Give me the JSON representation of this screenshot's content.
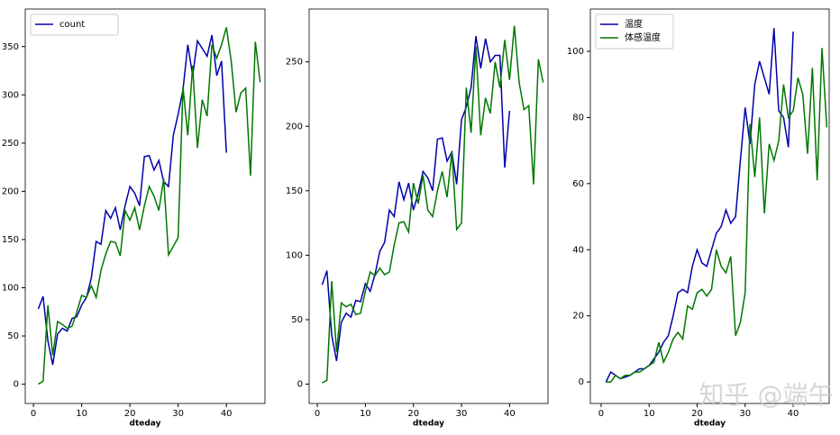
{
  "chart_data": [
    {
      "type": "line",
      "xlabel": "dteday",
      "legend": "upper left",
      "x": [
        1,
        2,
        3,
        4,
        5,
        6,
        7,
        8,
        9,
        10,
        11,
        12,
        13,
        14,
        15,
        16,
        17,
        18,
        19,
        20,
        21,
        22,
        23,
        24,
        25,
        26,
        27,
        28,
        29,
        30,
        31,
        32,
        33,
        34,
        35,
        36,
        37,
        38,
        39,
        40,
        41,
        42,
        43,
        44,
        45,
        46,
        47
      ],
      "xlim": [
        -1.7,
        48
      ],
      "xticks": [
        0,
        10,
        20,
        30,
        40
      ],
      "ylim": [
        -20,
        389
      ],
      "yticks": [
        0,
        50,
        100,
        150,
        200,
        250,
        300,
        350
      ],
      "series": [
        {
          "name": "count",
          "color": "#0000aa",
          "values": [
            78,
            91,
            45,
            20,
            52,
            58,
            55,
            68,
            70,
            82,
            90,
            110,
            148,
            145,
            180,
            172,
            183,
            160,
            185,
            205,
            198,
            185,
            236,
            237,
            222,
            232,
            210,
            205,
            258,
            280,
            305,
            352,
            320,
            356,
            348,
            340,
            362,
            320,
            335,
            240,
            null,
            null,
            null,
            null,
            null,
            null,
            null
          ]
        },
        {
          "color": "#007700",
          "values": [
            0,
            3,
            82,
            30,
            65,
            62,
            58,
            60,
            75,
            92,
            90,
            102,
            90,
            118,
            135,
            148,
            147,
            133,
            180,
            170,
            183,
            160,
            185,
            205,
            195,
            180,
            213,
            134,
            143,
            152,
            308,
            258,
            330,
            245,
            295,
            278,
            352,
            338,
            352,
            370,
            335,
            282,
            302,
            307,
            216,
            355,
            313
          ]
        }
      ]
    },
    {
      "type": "line",
      "xlabel": "dteday",
      "x": [
        1,
        2,
        3,
        4,
        5,
        6,
        7,
        8,
        9,
        10,
        11,
        12,
        13,
        14,
        15,
        16,
        17,
        18,
        19,
        20,
        21,
        22,
        23,
        24,
        25,
        26,
        27,
        28,
        29,
        30,
        31,
        32,
        33,
        34,
        35,
        36,
        37,
        38,
        39,
        40,
        41,
        42,
        43,
        44,
        45,
        46,
        47
      ],
      "xlim": [
        -1.7,
        48
      ],
      "xticks": [
        0,
        10,
        20,
        30,
        40
      ],
      "ylim": [
        -15,
        291
      ],
      "yticks": [
        0,
        50,
        100,
        150,
        200,
        250
      ],
      "series": [
        {
          "color": "#0000aa",
          "values": [
            77,
            88,
            38,
            18,
            48,
            55,
            52,
            65,
            64,
            78,
            72,
            85,
            103,
            110,
            135,
            130,
            157,
            143,
            156,
            135,
            148,
            165,
            160,
            150,
            190,
            191,
            173,
            180,
            155,
            205,
            215,
            230,
            270,
            245,
            268,
            250,
            255,
            255,
            168,
            212,
            null,
            null,
            null,
            null,
            null,
            null,
            null
          ]
        },
        {
          "color": "#007700",
          "values": [
            1,
            3,
            80,
            25,
            63,
            60,
            62,
            54,
            55,
            72,
            87,
            84,
            90,
            85,
            87,
            108,
            125,
            126,
            118,
            156,
            140,
            162,
            135,
            130,
            150,
            165,
            145,
            180,
            120,
            125,
            230,
            195,
            262,
            193,
            222,
            210,
            250,
            230,
            267,
            236,
            278,
            234,
            213,
            216,
            155,
            252,
            234
          ]
        }
      ]
    },
    {
      "type": "line",
      "xlabel": "dteday",
      "legend": "upper left",
      "x": [
        1,
        2,
        3,
        4,
        5,
        6,
        7,
        8,
        9,
        10,
        11,
        12,
        13,
        14,
        15,
        16,
        17,
        18,
        19,
        20,
        21,
        22,
        23,
        24,
        25,
        26,
        27,
        28,
        29,
        30,
        31,
        32,
        33,
        34,
        35,
        36,
        37,
        38,
        39,
        40,
        41,
        42,
        43,
        44,
        45,
        46,
        47
      ],
      "xlim": [
        -2.25,
        47.5
      ],
      "xticks": [
        0,
        10,
        20,
        30,
        40
      ],
      "ylim": [
        -6.5,
        112.8
      ],
      "yticks": [
        0,
        20,
        40,
        60,
        80,
        100
      ],
      "series": [
        {
          "name": "温度",
          "color": "#0000aa",
          "values": [
            0,
            3,
            2,
            1,
            1.5,
            2,
            3,
            4,
            4,
            5,
            7,
            9,
            12,
            14,
            20,
            27,
            28,
            27,
            35,
            40,
            36,
            35,
            40,
            45,
            47,
            52,
            48,
            50,
            67,
            83,
            72,
            90,
            97,
            92,
            87,
            107,
            82,
            80,
            71,
            106,
            null,
            null,
            null,
            null,
            null,
            null,
            null
          ]
        },
        {
          "name": "体感温度",
          "color": "#007700",
          "values": [
            0,
            0,
            2,
            1,
            2,
            2,
            3,
            3,
            4,
            5,
            6,
            12,
            6,
            9,
            13,
            15,
            13,
            23,
            22,
            27,
            28,
            26,
            28,
            40,
            35,
            33,
            38,
            14,
            18,
            27,
            78,
            62,
            80,
            51,
            72,
            67,
            73,
            90,
            80,
            82,
            92,
            87,
            69,
            95,
            61,
            101,
            77
          ]
        }
      ]
    }
  ],
  "watermark": "知乎 @端午"
}
